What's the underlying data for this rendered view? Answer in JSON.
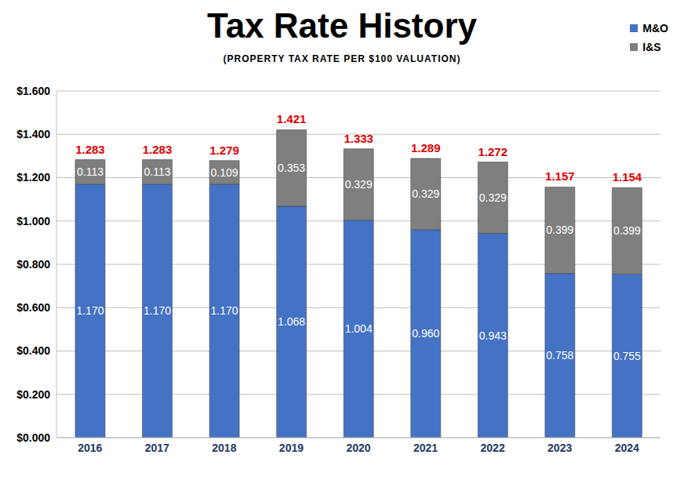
{
  "chart_data": {
    "type": "bar",
    "title": "Tax Rate History",
    "subtitle": "(PROPERTY TAX RATE PER $100 VALUATION)",
    "categories": [
      "2016",
      "2017",
      "2018",
      "2019",
      "2020",
      "2021",
      "2022",
      "2023",
      "2024"
    ],
    "series": [
      {
        "name": "M&O",
        "color": "#4472c4",
        "values": [
          1.17,
          1.17,
          1.17,
          1.068,
          1.004,
          0.96,
          0.943,
          0.758,
          0.755
        ],
        "value_labels": [
          "1.170",
          "1.170",
          "1.170",
          "1.068",
          "1.004",
          "0.960",
          "0.943",
          "0.758",
          "0.755"
        ]
      },
      {
        "name": "I&S",
        "color": "#7f7f7f",
        "values": [
          0.113,
          0.113,
          0.109,
          0.353,
          0.329,
          0.329,
          0.329,
          0.399,
          0.399
        ],
        "value_labels": [
          "0.113",
          "0.113",
          "0.109",
          "0.353",
          "0.329",
          "0.329",
          "0.329",
          "0.399",
          "0.399"
        ]
      }
    ],
    "totals": [
      1.283,
      1.283,
      1.279,
      1.421,
      1.333,
      1.289,
      1.272,
      1.157,
      1.154
    ],
    "ylim": [
      0,
      1.6
    ],
    "yticks": [
      {
        "value": 0,
        "label": "$0.000"
      },
      {
        "value": 0.2,
        "label": "$0.200"
      },
      {
        "value": 0.4,
        "label": "$0.400"
      },
      {
        "value": 0.6,
        "label": "$0.600"
      },
      {
        "value": 0.8,
        "label": "$0.800"
      },
      {
        "value": 1.0,
        "label": "$1.000"
      },
      {
        "value": 1.2,
        "label": "$1.200"
      },
      {
        "value": 1.4,
        "label": "$1.400"
      },
      {
        "value": 1.6,
        "label": "$1.600"
      }
    ],
    "grid": true,
    "stacked": true,
    "data_labels": true,
    "legend": "upper right"
  }
}
